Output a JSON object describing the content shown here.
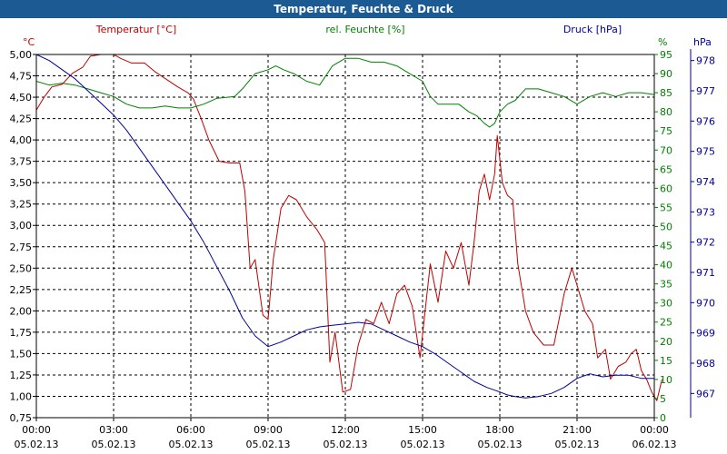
{
  "title": "Temperatur, Feuchte & Druck",
  "colors": {
    "background": "#ffffff",
    "title_bar": "#1c5a94",
    "temp": "#c00000",
    "hum": "#008000",
    "press": "#00009c",
    "grid": "#000000",
    "axis": "#000000"
  },
  "chart_data": {
    "type": "line",
    "title": "Temperatur, Feuchte & Druck",
    "grid": true,
    "x_ticks": [
      {
        "t": 0,
        "time": "00:00",
        "date": "05.02.13"
      },
      {
        "t": 3,
        "time": "03:00",
        "date": "05.02.13"
      },
      {
        "t": 6,
        "time": "06:00",
        "date": "05.02.13"
      },
      {
        "t": 9,
        "time": "09:00",
        "date": "05.02.13"
      },
      {
        "t": 12,
        "time": "12:00",
        "date": "05.02.13"
      },
      {
        "t": 15,
        "time": "15:00",
        "date": "05.02.13"
      },
      {
        "t": 18,
        "time": "18:00",
        "date": "05.02.13"
      },
      {
        "t": 21,
        "time": "21:00",
        "date": "05.02.13"
      },
      {
        "t": 24,
        "time": "00:00",
        "date": "06.02.13"
      }
    ],
    "xlim": [
      0,
      24
    ],
    "axes": {
      "temp": {
        "unit": "°C",
        "label": "Temperatur [°C]",
        "ylim": [
          0.75,
          5.0
        ],
        "ticks": [
          "5,00",
          "4,75",
          "4,50",
          "4,25",
          "4,00",
          "3,75",
          "3,50",
          "3,25",
          "3,00",
          "2,75",
          "2,50",
          "2,25",
          "2,00",
          "1,75",
          "1,50",
          "1,25",
          "1,00",
          "0,75"
        ]
      },
      "hum": {
        "unit": "%",
        "label": "rel. Feuchte [%]",
        "ylim": [
          0,
          95
        ],
        "ticks": [
          "95",
          "90",
          "85",
          "80",
          "75",
          "70",
          "65",
          "60",
          "55",
          "50",
          "45",
          "40",
          "35",
          "30",
          "25",
          "20",
          "15",
          "10",
          "5",
          "0"
        ]
      },
      "press": {
        "unit": "hPa",
        "label": "Druck [hPa]",
        "ylim": [
          966.2,
          978.2
        ],
        "ticks": [
          "978",
          "977",
          "976",
          "975",
          "974",
          "973",
          "972",
          "971",
          "970",
          "969",
          "968",
          "967"
        ]
      }
    },
    "series": [
      {
        "name": "Temperatur [°C]",
        "axis": "temp",
        "points": [
          [
            0,
            4.35
          ],
          [
            0.3,
            4.5
          ],
          [
            0.6,
            4.62
          ],
          [
            1.0,
            4.65
          ],
          [
            1.4,
            4.78
          ],
          [
            1.8,
            4.85
          ],
          [
            2.1,
            4.98
          ],
          [
            2.5,
            5.0
          ],
          [
            3.0,
            5.0
          ],
          [
            3.3,
            4.95
          ],
          [
            3.7,
            4.9
          ],
          [
            4.2,
            4.9
          ],
          [
            4.6,
            4.8
          ],
          [
            5.0,
            4.72
          ],
          [
            5.5,
            4.62
          ],
          [
            5.9,
            4.55
          ],
          [
            6.1,
            4.48
          ],
          [
            6.4,
            4.25
          ],
          [
            6.7,
            4.0
          ],
          [
            7.1,
            3.75
          ],
          [
            7.5,
            3.73
          ],
          [
            7.9,
            3.73
          ],
          [
            8.1,
            3.4
          ],
          [
            8.3,
            2.5
          ],
          [
            8.5,
            2.6
          ],
          [
            8.8,
            1.95
          ],
          [
            9.0,
            1.9
          ],
          [
            9.2,
            2.6
          ],
          [
            9.5,
            3.2
          ],
          [
            9.8,
            3.35
          ],
          [
            10.1,
            3.3
          ],
          [
            10.5,
            3.1
          ],
          [
            10.9,
            2.95
          ],
          [
            11.2,
            2.8
          ],
          [
            11.4,
            1.4
          ],
          [
            11.6,
            1.75
          ],
          [
            11.9,
            1.05
          ],
          [
            12.2,
            1.08
          ],
          [
            12.5,
            1.6
          ],
          [
            12.8,
            1.9
          ],
          [
            13.1,
            1.85
          ],
          [
            13.4,
            2.1
          ],
          [
            13.7,
            1.85
          ],
          [
            14.0,
            2.2
          ],
          [
            14.3,
            2.3
          ],
          [
            14.6,
            2.05
          ],
          [
            14.9,
            1.45
          ],
          [
            15.1,
            2.0
          ],
          [
            15.3,
            2.55
          ],
          [
            15.6,
            2.1
          ],
          [
            15.9,
            2.7
          ],
          [
            16.2,
            2.5
          ],
          [
            16.5,
            2.8
          ],
          [
            16.8,
            2.3
          ],
          [
            17.0,
            2.8
          ],
          [
            17.2,
            3.4
          ],
          [
            17.4,
            3.6
          ],
          [
            17.6,
            3.3
          ],
          [
            17.8,
            3.6
          ],
          [
            17.9,
            4.05
          ],
          [
            18.1,
            3.5
          ],
          [
            18.3,
            3.35
          ],
          [
            18.5,
            3.3
          ],
          [
            18.7,
            2.55
          ],
          [
            19.0,
            2.0
          ],
          [
            19.3,
            1.75
          ],
          [
            19.7,
            1.6
          ],
          [
            20.1,
            1.6
          ],
          [
            20.3,
            1.9
          ],
          [
            20.5,
            2.2
          ],
          [
            20.8,
            2.5
          ],
          [
            21.0,
            2.3
          ],
          [
            21.3,
            2.0
          ],
          [
            21.6,
            1.85
          ],
          [
            21.8,
            1.45
          ],
          [
            22.1,
            1.55
          ],
          [
            22.3,
            1.2
          ],
          [
            22.6,
            1.35
          ],
          [
            22.9,
            1.4
          ],
          [
            23.1,
            1.5
          ],
          [
            23.3,
            1.55
          ],
          [
            23.5,
            1.3
          ],
          [
            23.7,
            1.2
          ],
          [
            23.9,
            1.05
          ],
          [
            24.1,
            0.95
          ],
          [
            24.3,
            1.2
          ]
        ]
      },
      {
        "name": "rel. Feuchte [%]",
        "axis": "hum",
        "points": [
          [
            0,
            88
          ],
          [
            0.5,
            87
          ],
          [
            1.0,
            87.5
          ],
          [
            1.5,
            87
          ],
          [
            2.0,
            86
          ],
          [
            2.5,
            85
          ],
          [
            3.0,
            84
          ],
          [
            3.5,
            82
          ],
          [
            4.0,
            81
          ],
          [
            4.5,
            81
          ],
          [
            5.0,
            81.5
          ],
          [
            5.5,
            81
          ],
          [
            6.0,
            81
          ],
          [
            6.5,
            82
          ],
          [
            7.0,
            83.5
          ],
          [
            7.7,
            84
          ],
          [
            8.0,
            86
          ],
          [
            8.5,
            90
          ],
          [
            9.0,
            91
          ],
          [
            9.3,
            92
          ],
          [
            9.6,
            91
          ],
          [
            10.0,
            90
          ],
          [
            10.5,
            88
          ],
          [
            11.0,
            87
          ],
          [
            11.2,
            89
          ],
          [
            11.5,
            92
          ],
          [
            12.0,
            94
          ],
          [
            12.5,
            94
          ],
          [
            13.0,
            93
          ],
          [
            13.5,
            93
          ],
          [
            14.0,
            92
          ],
          [
            14.5,
            90
          ],
          [
            15.0,
            88
          ],
          [
            15.3,
            84
          ],
          [
            15.6,
            82
          ],
          [
            16.0,
            82
          ],
          [
            16.4,
            82
          ],
          [
            16.8,
            80
          ],
          [
            17.1,
            79
          ],
          [
            17.4,
            77
          ],
          [
            17.6,
            76
          ],
          [
            17.8,
            77
          ],
          [
            18.0,
            80
          ],
          [
            18.3,
            82
          ],
          [
            18.6,
            83
          ],
          [
            19.0,
            86
          ],
          [
            19.5,
            86
          ],
          [
            20.0,
            85
          ],
          [
            20.5,
            84
          ],
          [
            21.0,
            82
          ],
          [
            21.5,
            84
          ],
          [
            22.0,
            85
          ],
          [
            22.5,
            84
          ],
          [
            23.0,
            85
          ],
          [
            23.5,
            85
          ],
          [
            24.0,
            84.5
          ]
        ]
      },
      {
        "name": "Druck [hPa]",
        "axis": "press",
        "points": [
          [
            0,
            978.2
          ],
          [
            0.5,
            978.0
          ],
          [
            1.0,
            977.7
          ],
          [
            1.5,
            977.4
          ],
          [
            2.0,
            977.0
          ],
          [
            2.5,
            976.6
          ],
          [
            3.0,
            976.2
          ],
          [
            3.5,
            975.7
          ],
          [
            4.0,
            975.1
          ],
          [
            4.5,
            974.5
          ],
          [
            5.0,
            973.9
          ],
          [
            5.5,
            973.3
          ],
          [
            6.0,
            972.7
          ],
          [
            6.5,
            972.0
          ],
          [
            7.0,
            971.2
          ],
          [
            7.5,
            970.4
          ],
          [
            8.0,
            969.5
          ],
          [
            8.5,
            968.9
          ],
          [
            9.0,
            968.55
          ],
          [
            9.5,
            968.7
          ],
          [
            10.0,
            968.9
          ],
          [
            10.5,
            969.1
          ],
          [
            11.0,
            969.2
          ],
          [
            11.5,
            969.25
          ],
          [
            12.0,
            969.3
          ],
          [
            12.5,
            969.35
          ],
          [
            13.0,
            969.3
          ],
          [
            13.5,
            969.1
          ],
          [
            14.0,
            968.9
          ],
          [
            14.5,
            968.7
          ],
          [
            15.0,
            968.55
          ],
          [
            15.5,
            968.3
          ],
          [
            16.0,
            968.0
          ],
          [
            16.5,
            967.7
          ],
          [
            17.0,
            967.4
          ],
          [
            17.5,
            967.2
          ],
          [
            18.0,
            967.05
          ],
          [
            18.3,
            966.95
          ],
          [
            18.6,
            966.9
          ],
          [
            19.0,
            966.85
          ],
          [
            19.5,
            966.9
          ],
          [
            20.0,
            967.0
          ],
          [
            20.5,
            967.2
          ],
          [
            21.0,
            967.5
          ],
          [
            21.5,
            967.65
          ],
          [
            22.0,
            967.55
          ],
          [
            22.5,
            967.6
          ],
          [
            23.0,
            967.6
          ],
          [
            23.5,
            967.5
          ],
          [
            24.0,
            967.5
          ]
        ]
      }
    ]
  }
}
